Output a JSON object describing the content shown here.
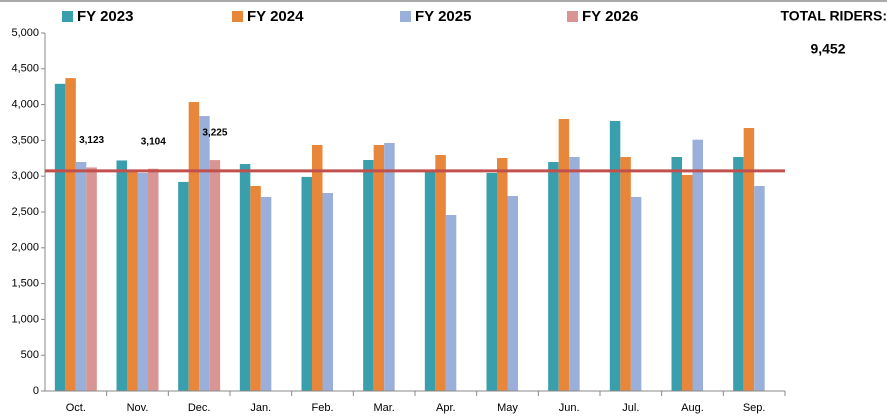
{
  "chart_data": {
    "type": "bar",
    "categories": [
      "Oct.",
      "Nov.",
      "Dec.",
      "Jan.",
      "Feb.",
      "Mar.",
      "Apr.",
      "May",
      "Jun.",
      "Jul.",
      "Aug.",
      "Sep."
    ],
    "series": [
      {
        "name": "FY 2023",
        "color": "#3a9fad",
        "values": [
          4290,
          3220,
          2920,
          3170,
          2990,
          3226,
          3087,
          3045,
          3198,
          3771,
          3268,
          3268
        ]
      },
      {
        "name": "FY 2024",
        "color": "#e8873a",
        "values": [
          4370,
          3090,
          4036,
          2863,
          3436,
          3436,
          3296,
          3254,
          3799,
          3268,
          3017,
          3673
        ]
      },
      {
        "name": "FY 2025",
        "color": "#9aafd9",
        "values": [
          3198,
          3045,
          3840,
          2710,
          2765,
          3464,
          2458,
          2723,
          3268,
          2710,
          3510,
          2863
        ]
      },
      {
        "name": "FY 2026",
        "color": "#d99594",
        "values": [
          3123,
          3104,
          3225,
          null,
          null,
          null,
          null,
          null,
          null,
          null,
          null,
          null
        ],
        "value_labels": [
          "3,123",
          "3,104",
          "3,225",
          null,
          null,
          null,
          null,
          null,
          null,
          null,
          null,
          null
        ]
      }
    ],
    "reference_line": {
      "value": 3075,
      "color": "#c0504d"
    },
    "annotations": [
      "TOTAL RIDERS:",
      "9,452"
    ],
    "ylim": [
      0,
      5000
    ],
    "yticks": [
      0,
      500,
      {
        "value": 1000,
        "label": "1,000"
      },
      {
        "value": 1500,
        "label": "1,500"
      },
      {
        "value": 2000,
        "label": "2,000"
      },
      {
        "value": 2500,
        "label": "2,500"
      },
      {
        "value": 3000,
        "label": "3,000"
      },
      {
        "value": 3500,
        "label": "3,500"
      },
      {
        "value": 4000,
        "label": "4,000"
      },
      {
        "value": 4500,
        "label": "4,500"
      },
      {
        "value": 5000,
        "label": "5,000"
      }
    ],
    "legend": "top"
  }
}
